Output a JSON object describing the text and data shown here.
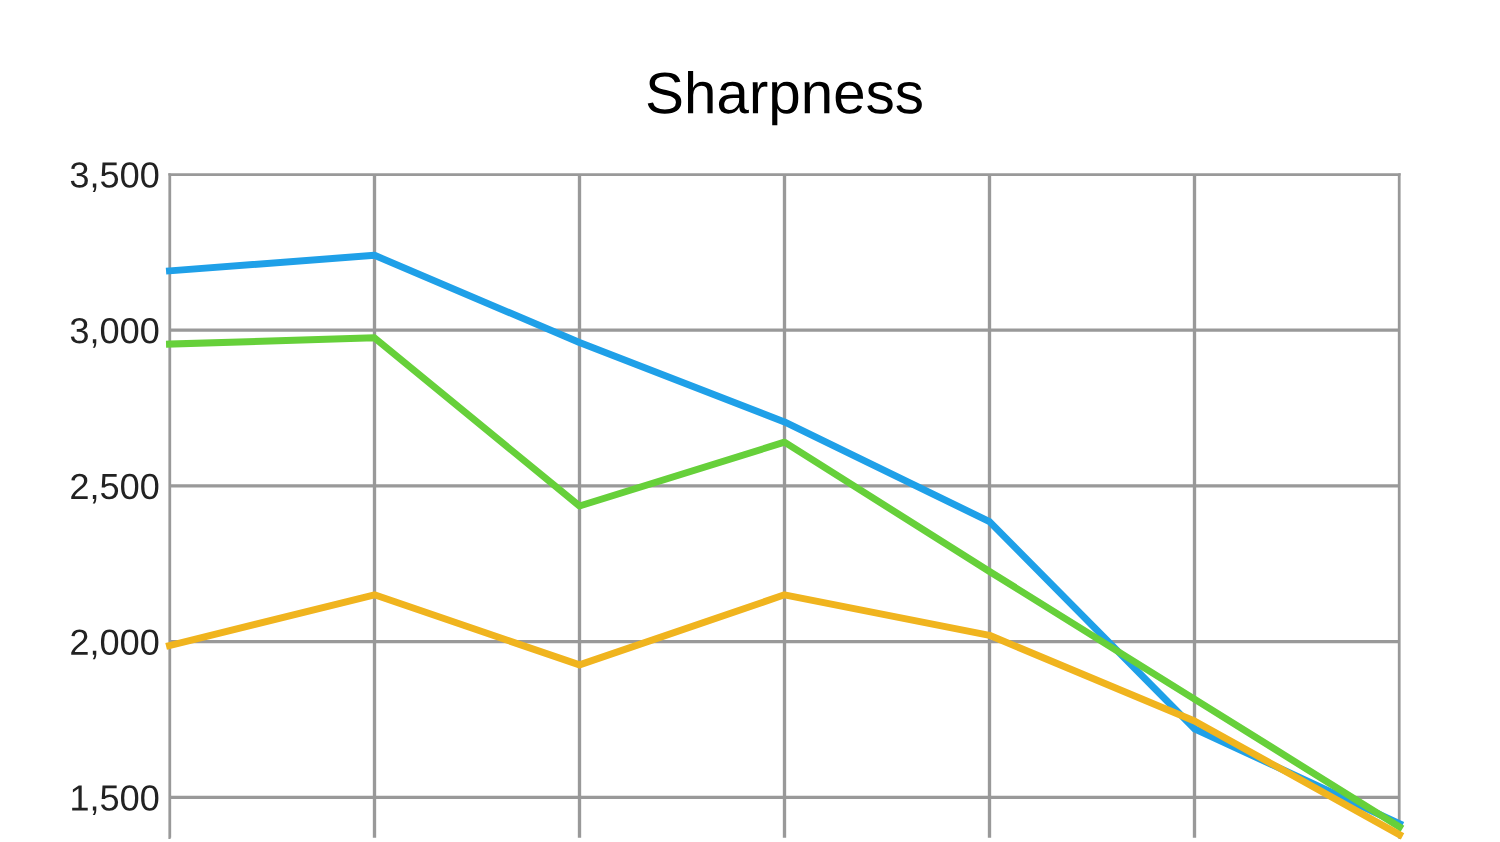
{
  "chart_data": {
    "type": "line",
    "title": "Sharpness",
    "categories": [
      null,
      null,
      null,
      null,
      null,
      null,
      null
    ],
    "series": [
      {
        "color": "#1fa0e8",
        "values": [
          3190,
          3240,
          2960,
          2705,
          2385,
          1720,
          1415
        ]
      },
      {
        "color": "#66d03a",
        "values": [
          2955,
          2975,
          2435,
          2640,
          2225,
          1815,
          1405
        ]
      },
      {
        "color": "#f0b41e",
        "values": [
          1987,
          2150,
          1925,
          2150,
          2020,
          1745,
          1380
        ]
      }
    ],
    "ylim": [
      1370,
      3500
    ],
    "yticks": [
      {
        "value": 1500,
        "label": "1,500"
      },
      {
        "value": 2000,
        "label": "2,000"
      },
      {
        "value": 2500,
        "label": "2,500"
      },
      {
        "value": 3000,
        "label": "3,000"
      },
      {
        "value": 3500,
        "label": "3,500"
      }
    ],
    "grid": true,
    "marker": "none",
    "line_style": "solid",
    "tick_labels": "y"
  }
}
